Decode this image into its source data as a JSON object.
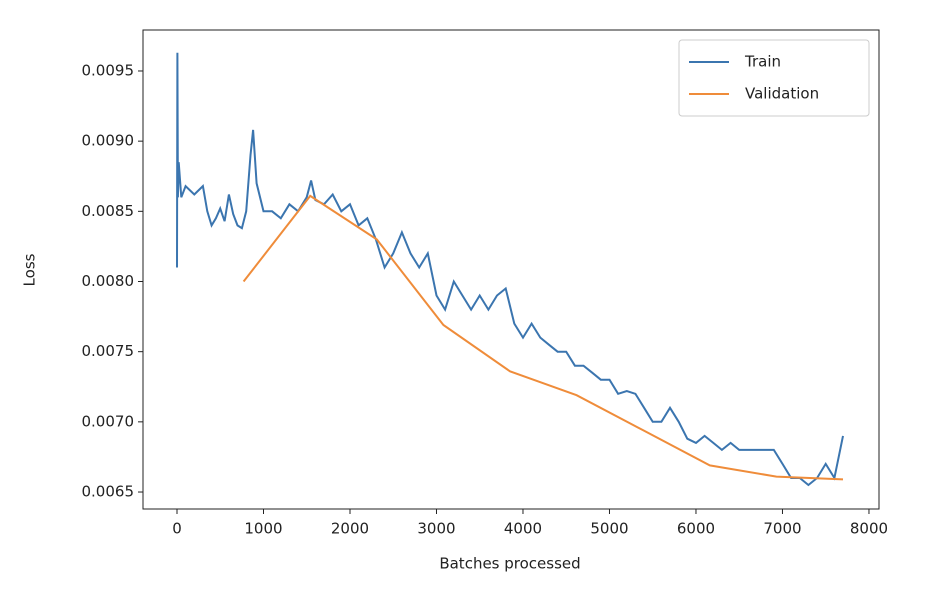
{
  "chart_data": {
    "type": "line",
    "xlabel": "Batches processed",
    "ylabel": "Loss",
    "xlim": [
      -393,
      8116
    ],
    "ylim": [
      0.006379,
      0.009792
    ],
    "xticks": [
      0,
      1000,
      2000,
      3000,
      4000,
      5000,
      6000,
      7000,
      8000
    ],
    "yticks": [
      0.0065,
      {
        "value": 0.007,
        "label": "0.0070"
      },
      0.0075,
      {
        "value": 0.008,
        "label": "0.0080"
      },
      0.0085,
      {
        "value": 0.009,
        "label": "0.0090"
      },
      0.0095
    ],
    "legend": "upper right",
    "series": [
      {
        "name": "Train",
        "color": "#3b75af",
        "x": [
          0,
          5,
          10,
          20,
          50,
          100,
          200,
          300,
          350,
          400,
          450,
          500,
          550,
          600,
          650,
          700,
          750,
          800,
          850,
          880,
          920,
          1000,
          1100,
          1200,
          1300,
          1400,
          1500,
          1550,
          1600,
          1700,
          1800,
          1900,
          2000,
          2100,
          2200,
          2300,
          2400,
          2500,
          2600,
          2700,
          2800,
          2900,
          3000,
          3100,
          3200,
          3300,
          3400,
          3500,
          3600,
          3700,
          3800,
          3900,
          4000,
          4100,
          4200,
          4300,
          4400,
          4500,
          4600,
          4700,
          4800,
          4900,
          5000,
          5100,
          5200,
          5300,
          5400,
          5500,
          5600,
          5700,
          5800,
          5900,
          6000,
          6100,
          6200,
          6300,
          6400,
          6500,
          6600,
          6700,
          6800,
          6900,
          7000,
          7100,
          7200,
          7300,
          7400,
          7500,
          7600,
          7700
        ],
        "values": [
          0.0081,
          0.00963,
          0.0086,
          0.00885,
          0.0086,
          0.00868,
          0.00862,
          0.00868,
          0.0085,
          0.0084,
          0.00845,
          0.00852,
          0.00843,
          0.00862,
          0.00848,
          0.0084,
          0.00838,
          0.0085,
          0.0089,
          0.00908,
          0.0087,
          0.0085,
          0.0085,
          0.00845,
          0.00855,
          0.0085,
          0.0086,
          0.00872,
          0.00858,
          0.00855,
          0.00862,
          0.0085,
          0.00855,
          0.0084,
          0.00845,
          0.0083,
          0.0081,
          0.0082,
          0.00835,
          0.0082,
          0.0081,
          0.0082,
          0.0079,
          0.0078,
          0.008,
          0.0079,
          0.0078,
          0.0079,
          0.0078,
          0.0079,
          0.00795,
          0.0077,
          0.0076,
          0.0077,
          0.0076,
          0.00755,
          0.0075,
          0.0075,
          0.0074,
          0.0074,
          0.00735,
          0.0073,
          0.0073,
          0.0072,
          0.00722,
          0.0072,
          0.0071,
          0.007,
          0.007,
          0.0071,
          0.007,
          0.00688,
          0.00685,
          0.0069,
          0.00685,
          0.0068,
          0.00685,
          0.0068,
          0.0068,
          0.0068,
          0.0068,
          0.0068,
          0.0067,
          0.0066,
          0.0066,
          0.00655,
          0.0066,
          0.0067,
          0.0066,
          0.0069
        ]
      },
      {
        "name": "Validation",
        "color": "#ef8c3a",
        "x": [
          770,
          1540,
          2310,
          3080,
          3850,
          4620,
          5390,
          6160,
          6930,
          7700
        ],
        "values": [
          0.008,
          0.00861,
          0.0083,
          0.00769,
          0.00736,
          0.00719,
          0.00694,
          0.00669,
          0.00661,
          0.00659
        ]
      }
    ]
  }
}
